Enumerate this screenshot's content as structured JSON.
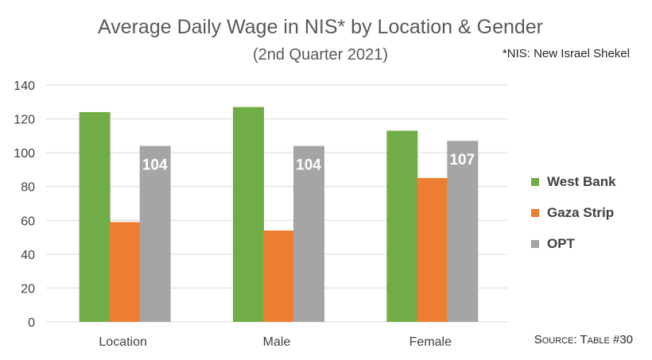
{
  "title": "Average Daily Wage in NIS* by Location & Gender",
  "subtitle": "(2nd Quarter 2021)",
  "footnote": "*NIS: New Israel Shekel",
  "source": "Source: Table #30",
  "colors": {
    "west_bank": "#70AD47",
    "gaza_strip": "#ED7D31",
    "opt": "#A5A5A5",
    "grid": "#D9D9D9",
    "axis_text": "#404040"
  },
  "chart_data": {
    "type": "bar",
    "title": "Average Daily Wage in NIS* by Location & Gender",
    "subtitle": "(2nd Quarter 2021)",
    "categories": [
      "Location",
      "Male",
      "Female"
    ],
    "series": [
      {
        "name": "West Bank",
        "values": [
          124,
          127,
          113
        ],
        "color": "#70AD47"
      },
      {
        "name": "Gaza Strip",
        "values": [
          59,
          54,
          85
        ],
        "color": "#ED7D31"
      },
      {
        "name": "OPT",
        "values": [
          104,
          104,
          107
        ],
        "color": "#A5A5A5",
        "data_labels": [
          "104",
          "104",
          "107"
        ]
      }
    ],
    "ylim": [
      0,
      140
    ],
    "yticks": [
      "0",
      "20",
      "40",
      "60",
      "80",
      "100",
      "120",
      "140"
    ],
    "grid": true,
    "legend_position": "right"
  }
}
